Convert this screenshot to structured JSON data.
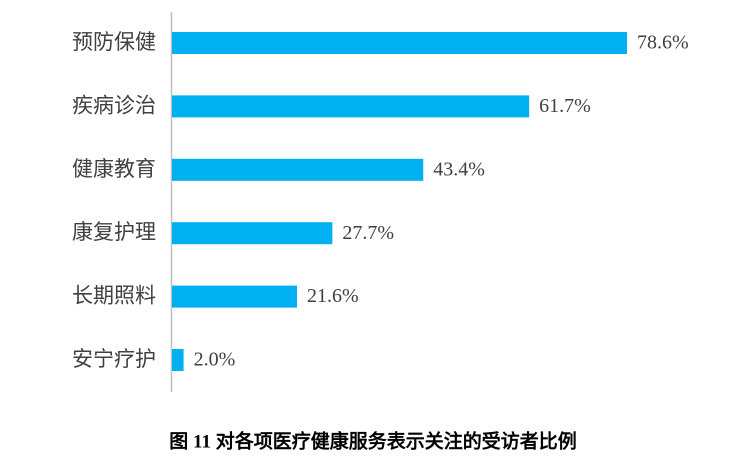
{
  "chart_data": {
    "type": "bar",
    "orientation": "horizontal",
    "title": "图 11  对各项医疗健康服务表示关注的受访者比例",
    "categories": [
      "预防保健",
      "疾病诊治",
      "健康教育",
      "康复护理",
      "长期照料",
      "安宁疗护"
    ],
    "values": [
      78.6,
      61.7,
      43.4,
      27.7,
      21.6,
      2.0
    ],
    "value_labels": [
      "78.6%",
      "61.7%",
      "43.4%",
      "27.7%",
      "21.6%",
      "2.0%"
    ],
    "color": "#00b0f0"
  }
}
